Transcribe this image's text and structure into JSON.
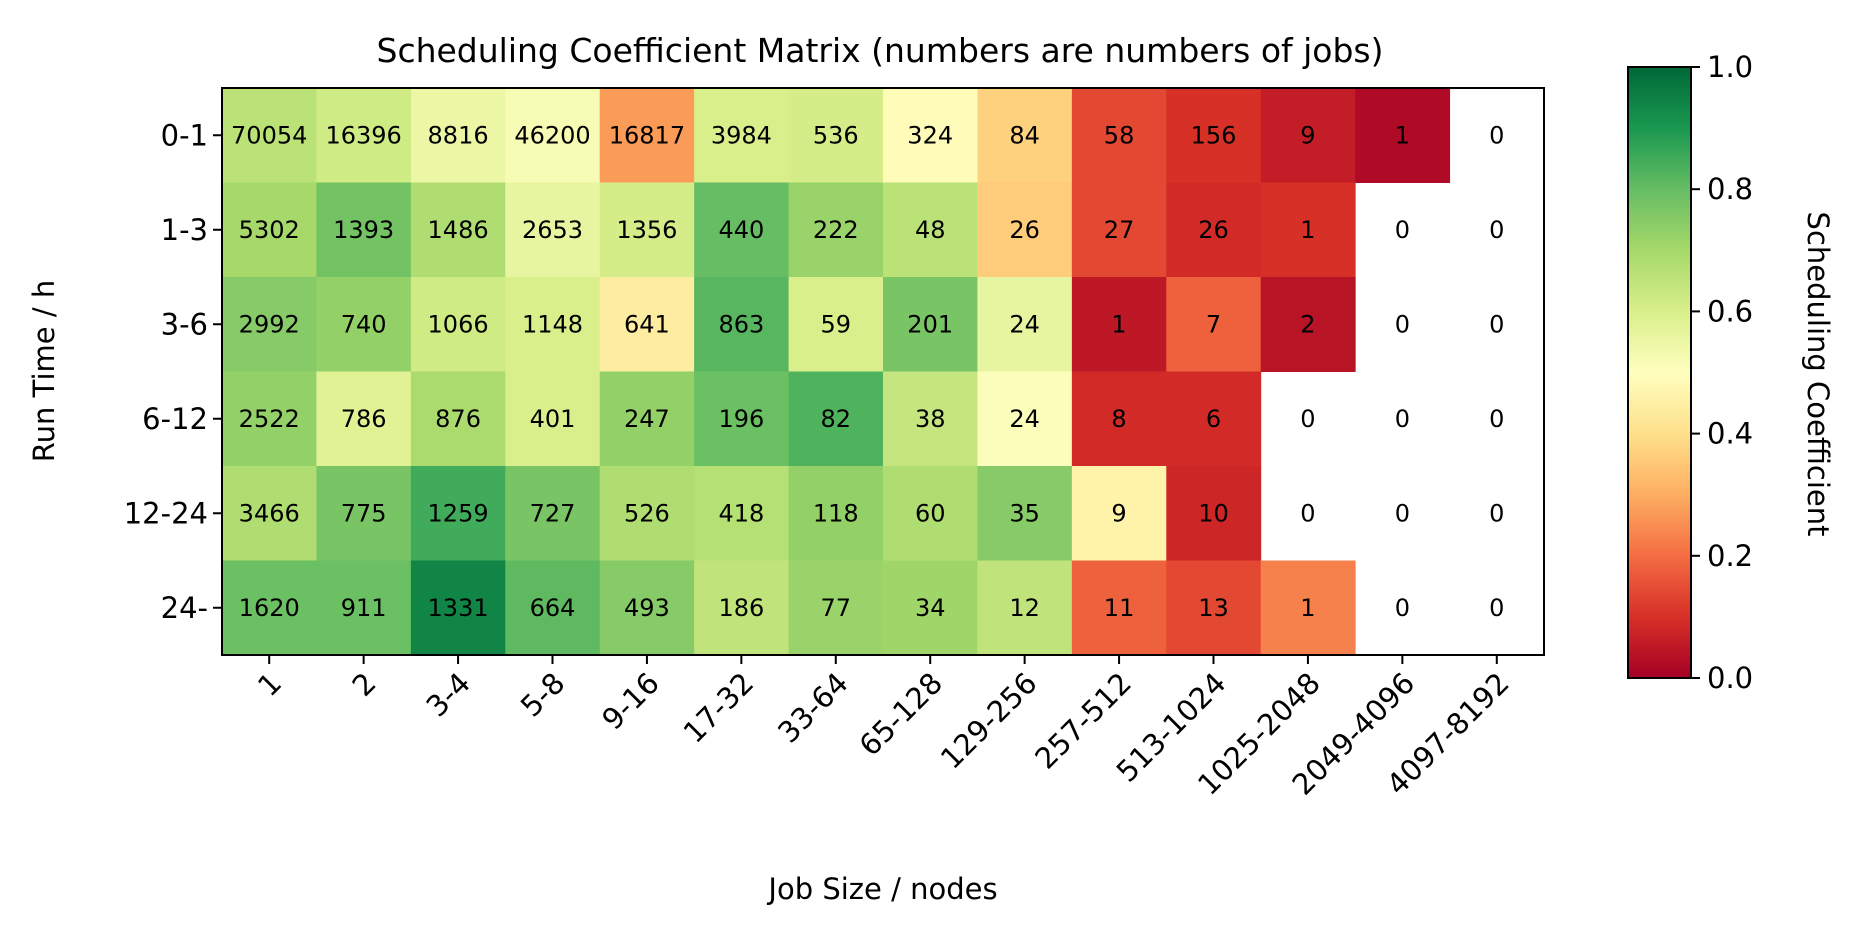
{
  "chart_data": {
    "type": "heatmap",
    "title": "Scheduling Coefficient Matrix (numbers are numbers of jobs)",
    "xlabel": "Job Size / nodes",
    "ylabel": "Run Time / h",
    "x_categories": [
      "1",
      "2",
      "3-4",
      "5-8",
      "9-16",
      "17-32",
      "33-64",
      "65-128",
      "129-256",
      "257-512",
      "513-1024",
      "1025-2048",
      "2049-4096",
      "4097-8192"
    ],
    "y_categories": [
      "0-1",
      "1-3",
      "3-6",
      "6-12",
      "12-24",
      "24-"
    ],
    "job_counts": [
      [
        70054,
        16396,
        8816,
        46200,
        16817,
        3984,
        536,
        324,
        84,
        58,
        156,
        9,
        1,
        0
      ],
      [
        5302,
        1393,
        1486,
        2653,
        1356,
        440,
        222,
        48,
        26,
        27,
        26,
        1,
        0,
        0
      ],
      [
        2992,
        740,
        1066,
        1148,
        641,
        863,
        59,
        201,
        24,
        1,
        7,
        2,
        0,
        0
      ],
      [
        2522,
        786,
        876,
        401,
        247,
        196,
        82,
        38,
        24,
        8,
        6,
        0,
        0,
        0
      ],
      [
        3466,
        775,
        1259,
        727,
        526,
        418,
        118,
        60,
        35,
        9,
        10,
        0,
        0,
        0
      ],
      [
        1620,
        911,
        1331,
        664,
        493,
        186,
        77,
        34,
        12,
        11,
        13,
        1,
        0,
        0
      ]
    ],
    "coefficients": [
      [
        0.66,
        0.62,
        0.55,
        0.52,
        0.27,
        0.6,
        0.61,
        0.49,
        0.37,
        0.14,
        0.1,
        0.06,
        0.02,
        null
      ],
      [
        0.7,
        0.78,
        0.68,
        0.56,
        0.61,
        0.8,
        0.72,
        0.66,
        0.36,
        0.14,
        0.09,
        0.1,
        null,
        null
      ],
      [
        0.75,
        0.73,
        0.62,
        0.6,
        0.44,
        0.82,
        0.6,
        0.77,
        0.56,
        0.05,
        0.18,
        0.04,
        null,
        null
      ],
      [
        0.73,
        0.58,
        0.69,
        0.6,
        0.73,
        0.79,
        0.83,
        0.64,
        0.51,
        0.09,
        0.09,
        null,
        null,
        null
      ],
      [
        0.68,
        0.77,
        0.85,
        0.77,
        0.68,
        0.67,
        0.73,
        0.68,
        0.75,
        0.46,
        0.08,
        null,
        null,
        null
      ],
      [
        0.79,
        0.79,
        0.94,
        0.81,
        0.75,
        0.65,
        0.72,
        0.71,
        0.65,
        0.18,
        0.14,
        0.23,
        null,
        null
      ]
    ],
    "colorbar": {
      "label": "Scheduling Coefficient",
      "colormap": "RdYlGn",
      "range": [
        0.0,
        1.0
      ],
      "ticks": [
        "0.0",
        "0.2",
        "0.4",
        "0.6",
        "0.8",
        "1.0"
      ]
    },
    "grid": false
  }
}
